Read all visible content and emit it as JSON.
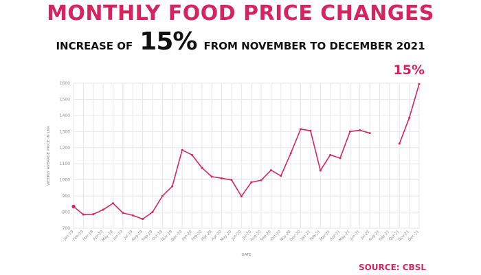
{
  "header": {
    "title": "MONTHLY FOOD PRICE CHANGES",
    "subtitle_pre": "INCREASE OF",
    "subtitle_big": "15%",
    "subtitle_post": "FROM NOVEMBER TO DECEMBER 2021"
  },
  "source": "SOURCE: CBSL",
  "colors": {
    "accent": "#d6245f",
    "text": "#111111",
    "grid": "#e6e6e6"
  },
  "chart_data": {
    "type": "line",
    "title": "",
    "xlabel": "DATE",
    "ylabel": "WEEKLY AVERAGE PRICE IN LKR",
    "ylim": [
      700,
      1600
    ],
    "yticks": [
      700,
      800,
      900,
      1000,
      1100,
      1200,
      1300,
      1400,
      1500,
      1600
    ],
    "grid": true,
    "categories": [
      "Jan-19",
      "Feb-19",
      "Mar-19",
      "Apr-19",
      "May-19",
      "Jun-19",
      "Jul-19",
      "Aug-19",
      "Sep-19",
      "Oct-19",
      "Nov-19",
      "Dec-19",
      "Jan-20",
      "Feb-20",
      "Mar-20",
      "Apr-20",
      "May-20",
      "Jun-20",
      "Jul-20",
      "Aug-20",
      "Sep-20",
      "Oct-20",
      "Nov-20",
      "Dec-20",
      "Jan-21",
      "Feb-21",
      "Mar-21",
      "Apr-21",
      "May-21",
      "Jun-21",
      "Jul-21",
      "Aug-21",
      "Sep-21",
      "Oct-21",
      "Nov-21",
      "Dec-21"
    ],
    "series": [
      {
        "values": [
          835,
          785,
          787,
          815,
          855,
          795,
          780,
          757,
          800,
          900,
          960,
          1185,
          1155,
          1075,
          1020,
          1010,
          1000,
          898,
          985,
          998,
          1060,
          1025,
          1165,
          1315,
          1305,
          1058,
          1155,
          1135,
          1300,
          1308,
          1290,
          null,
          null,
          1225,
          1385,
          1595
        ]
      }
    ],
    "annotation": {
      "text": "15%",
      "category": "Dec-21"
    }
  }
}
